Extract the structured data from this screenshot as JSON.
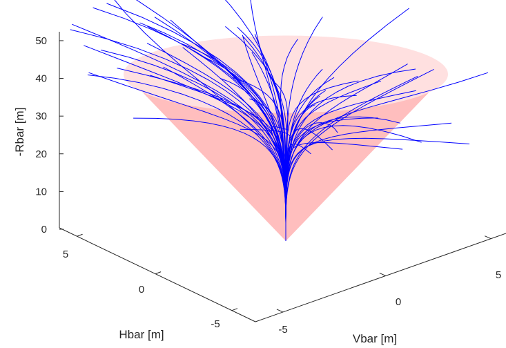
{
  "chart_data": {
    "type": "line",
    "subtype": "3d-trajectories-in-cone",
    "title": "",
    "xlabel": "Vbar [m]",
    "ylabel": "Hbar [m]",
    "zlabel": "-Rbar [m]",
    "xticks": [
      "-5",
      "0",
      "5"
    ],
    "yticks": [
      "-5",
      "0",
      "5"
    ],
    "zticks": [
      "0",
      "10",
      "20",
      "30",
      "40",
      "50"
    ],
    "xlim": [
      -8,
      8
    ],
    "ylim": [
      -8,
      8
    ],
    "zlim": [
      0,
      52
    ],
    "grid": false,
    "legend": "none",
    "cone": {
      "apex_z": 0,
      "top_z": 45,
      "top_radius": 10,
      "color": "#ffb3b3"
    },
    "series_color": "#0000ff",
    "trajectory_count": 60
  }
}
